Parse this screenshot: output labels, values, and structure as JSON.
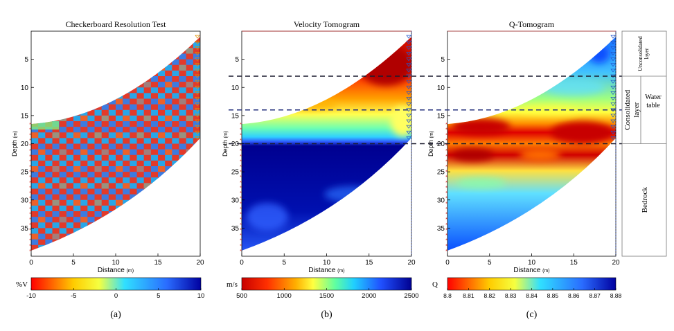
{
  "panels": [
    {
      "title": "Checkerboard Resolution Test",
      "xlabel": "Distance",
      "xunit": "(m)",
      "ylabel": "Depth",
      "yunit": "(m)",
      "caption": "(a)",
      "colorbar": {
        "unit": "%V",
        "min": -10,
        "max": 10,
        "ticks": [
          "-10",
          "-5",
          "0",
          "5",
          "10"
        ]
      }
    },
    {
      "title": "Velocity Tomogram",
      "xlabel": "Distance",
      "xunit": "(m)",
      "ylabel": "Depth",
      "yunit": "(m)",
      "caption": "(b)",
      "colorbar": {
        "unit": "m/s",
        "min": 500,
        "max": 2500,
        "ticks": [
          "500",
          "1000",
          "1500",
          "2000",
          "2500"
        ]
      }
    },
    {
      "title": "Q-Tomogram",
      "xlabel": "Distance",
      "xunit": "(m)",
      "ylabel": "Depth",
      "yunit": "(m)",
      "caption": "(c)",
      "colorbar": {
        "unit": "Q",
        "min": 8.8,
        "max": 8.88,
        "ticks": [
          "8.8",
          "8.81",
          "8.82",
          "8.83",
          "8.84",
          "8.85",
          "8.86",
          "8.87",
          "8.88"
        ]
      }
    }
  ],
  "legend_column": {
    "unconsolidated": "Unconsolidated layer",
    "consolidated": "Consolidated layer",
    "water_table_1": "Water",
    "water_table_2": "table",
    "bedrock": "Bedrock"
  },
  "colors": {
    "dashed_line": "#1a1a2e",
    "water_line": "#1e2a78",
    "source": "#e0261b",
    "receiver": "#3355dd"
  },
  "chart_data": [
    {
      "type": "heatmap",
      "title": "Checkerboard Resolution Test",
      "xlabel": "Distance (m)",
      "ylabel": "Depth (m)",
      "xlim": [
        0,
        20
      ],
      "ylim": [
        0,
        40
      ],
      "y_inverted": true,
      "x_ticks": [
        0,
        5,
        10,
        15,
        20
      ],
      "y_ticks": [
        5,
        10,
        15,
        20,
        25,
        30,
        35
      ],
      "coverage": {
        "left_x": 0,
        "left_depth_top": 16.5,
        "left_depth_bottom": 39,
        "right_x": 20,
        "right_depth_top": 1,
        "right_depth_bottom": 19
      },
      "pattern": "alternating +10 / -10 %V checkerboard cells",
      "colorbar": {
        "label": "%V",
        "range": [
          -10,
          10
        ]
      }
    },
    {
      "type": "heatmap",
      "title": "Velocity Tomogram",
      "xlabel": "Distance (m)",
      "ylabel": "Depth (m)",
      "xlim": [
        0,
        20
      ],
      "ylim": [
        0,
        40
      ],
      "y_inverted": true,
      "x_ticks": [
        0,
        5,
        10,
        15,
        20
      ],
      "y_ticks": [
        5,
        10,
        15,
        20,
        25,
        30,
        35
      ],
      "colorbar": {
        "label": "m/s",
        "range": [
          500,
          2500
        ]
      },
      "depth_profile": [
        {
          "depth": 2,
          "velocity": 500
        },
        {
          "depth": 8,
          "velocity": 700
        },
        {
          "depth": 12,
          "velocity": 900
        },
        {
          "depth": 15,
          "velocity": 1250
        },
        {
          "depth": 18,
          "velocity": 1500
        },
        {
          "depth": 19.5,
          "velocity": 1700
        },
        {
          "depth": 21,
          "velocity": 2450
        },
        {
          "depth": 30,
          "velocity": 2400
        },
        {
          "depth": 38,
          "velocity": 2100
        }
      ]
    },
    {
      "type": "heatmap",
      "title": "Q-Tomogram",
      "xlabel": "Distance (m)",
      "ylabel": "Depth (m)",
      "xlim": [
        0,
        20
      ],
      "ylim": [
        0,
        40
      ],
      "y_inverted": true,
      "x_ticks": [
        0,
        5,
        10,
        15,
        20
      ],
      "y_ticks": [
        5,
        10,
        15,
        20,
        25,
        30,
        35
      ],
      "colorbar": {
        "label": "Q",
        "range": [
          8.8,
          8.88
        ]
      },
      "depth_profile": [
        {
          "depth": 3,
          "q": 8.865
        },
        {
          "depth": 10,
          "q": 8.84
        },
        {
          "depth": 14,
          "q": 8.825
        },
        {
          "depth": 17,
          "q": 8.802
        },
        {
          "depth": 20,
          "q": 8.81
        },
        {
          "depth": 22,
          "q": 8.803
        },
        {
          "depth": 26,
          "q": 8.835
        },
        {
          "depth": 32,
          "q": 8.86
        },
        {
          "depth": 38,
          "q": 8.875
        }
      ]
    }
  ],
  "interpretation_depths": {
    "unconsolidated_base": 8,
    "water_table": 14,
    "bedrock_top": 20
  }
}
